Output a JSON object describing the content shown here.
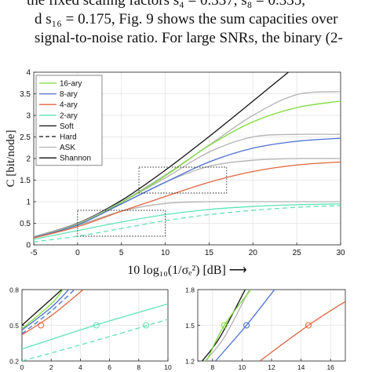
{
  "text_lines": [
    "the fixed scaling factors s₄ = 0.337, s₈ = 0.335,",
    "d s₁₆ = 0.175, Fig. 9 shows the sum capacities over",
    "signal-to-noise ratio. For large SNRs, the binary (2-"
  ],
  "chart_data": [
    {
      "type": "line",
      "title": "",
      "xlabel": "10 log₁₀(1/σₑ²) [dB]  ⟶",
      "ylabel": "C [bit/node]",
      "xlim": [
        -5,
        30
      ],
      "ylim": [
        0,
        4
      ],
      "xticks": [
        -5,
        0,
        5,
        10,
        15,
        20,
        25,
        30
      ],
      "yticks": [
        0,
        0.5,
        1,
        1.5,
        2,
        2.5,
        3,
        3.5,
        4
      ],
      "grid": true,
      "legend_position": "top-left",
      "legend": [
        {
          "label": "16-ary",
          "color": "#7ddc3a",
          "dash": "solid"
        },
        {
          "label": "8-ary",
          "color": "#4b6fd0",
          "dash": "solid"
        },
        {
          "label": "4-ary",
          "color": "#e0653f",
          "dash": "solid"
        },
        {
          "label": "2-ary",
          "color": "#5fe3b4",
          "dash": "solid"
        },
        {
          "label": "Soft",
          "color": "#111111",
          "dash": "solid"
        },
        {
          "label": "Hard",
          "color": "#111111",
          "dash": "dashed"
        },
        {
          "label": "ASK",
          "color": "#b3b3b3",
          "dash": "solid"
        },
        {
          "label": "Shannon",
          "color": "#111111",
          "dash": "solid"
        }
      ],
      "series": [
        {
          "name": "Shannon",
          "color": "#111111",
          "dash": "solid",
          "x": [
            -5,
            0,
            5,
            10,
            15,
            20,
            25,
            28
          ],
          "y": [
            0.19,
            0.5,
            1.03,
            1.73,
            2.51,
            3.33,
            4.16,
            4.66
          ]
        },
        {
          "name": "ASK",
          "color": "#b3b3b3",
          "dash": "solid",
          "x": [
            -5,
            0,
            5,
            10,
            15,
            20,
            25,
            30
          ],
          "y": [
            0.19,
            0.49,
            1.0,
            1.62,
            2.31,
            3.0,
            3.48,
            3.55
          ]
        },
        {
          "color": "#b3b3b3",
          "dash": "solid",
          "x": [
            -5,
            0,
            5,
            10,
            15,
            20,
            25,
            30
          ],
          "y": [
            0.19,
            0.49,
            0.99,
            1.55,
            2.15,
            2.5,
            2.56,
            2.56
          ]
        },
        {
          "color": "#b3b3b3",
          "dash": "solid",
          "x": [
            -5,
            0,
            5,
            10,
            15,
            20,
            25,
            30
          ],
          "y": [
            0.19,
            0.48,
            0.95,
            1.45,
            1.82,
            1.96,
            2.0,
            2.0
          ]
        },
        {
          "color": "#b3b3b3",
          "dash": "solid",
          "x": [
            -5,
            0,
            5,
            10,
            15,
            20,
            25,
            30
          ],
          "y": [
            0.19,
            0.45,
            0.78,
            0.96,
            1.0,
            1.0,
            1.0,
            1.0
          ]
        },
        {
          "name": "16-ary",
          "color": "#7ddc3a",
          "dash": "solid",
          "x": [
            -5,
            0,
            5,
            10,
            15,
            20,
            25,
            30
          ],
          "y": [
            0.17,
            0.47,
            0.98,
            1.6,
            2.3,
            2.85,
            3.18,
            3.33
          ]
        },
        {
          "name": "8-ary",
          "color": "#4b6fd0",
          "dash": "solid",
          "x": [
            -5,
            0,
            5,
            10,
            15,
            20,
            25,
            30
          ],
          "y": [
            0.17,
            0.46,
            0.95,
            1.45,
            1.92,
            2.24,
            2.4,
            2.47
          ]
        },
        {
          "name": "4-ary",
          "color": "#e0653f",
          "dash": "solid",
          "x": [
            -5,
            0,
            5,
            10,
            15,
            20,
            25,
            30
          ],
          "y": [
            0.16,
            0.42,
            0.78,
            1.12,
            1.45,
            1.7,
            1.85,
            1.92
          ]
        },
        {
          "name": "2-ary",
          "color": "#5fe3b4",
          "dash": "solid",
          "x": [
            -5,
            0,
            5,
            10,
            15,
            20,
            25,
            30
          ],
          "y": [
            0.13,
            0.33,
            0.53,
            0.7,
            0.82,
            0.89,
            0.93,
            0.95
          ]
        },
        {
          "name": "Hard",
          "color": "#5fe3b4",
          "dash": "dashed",
          "x": [
            -5,
            0,
            5,
            10,
            15,
            20,
            25,
            30
          ],
          "y": [
            0.07,
            0.2,
            0.38,
            0.56,
            0.7,
            0.8,
            0.87,
            0.91
          ]
        }
      ],
      "zoom_boxes": [
        {
          "x": [
            0,
            10
          ],
          "y": [
            0.2,
            0.8
          ]
        },
        {
          "x": [
            7,
            17
          ],
          "y": [
            1.2,
            1.8
          ]
        }
      ]
    },
    {
      "type": "line",
      "xlim": [
        0,
        10
      ],
      "ylim": [
        0.2,
        0.8
      ],
      "xticks": [
        0,
        2,
        4,
        6,
        8,
        10
      ],
      "yticks": [
        0.2,
        0.5,
        0.8
      ],
      "grid": true,
      "series": [
        {
          "color": "#111111",
          "dash": "solid",
          "x": [
            0,
            2,
            3
          ],
          "y": [
            0.5,
            0.72,
            0.83
          ]
        },
        {
          "color": "#7ddc3a",
          "dash": "solid",
          "x": [
            0,
            2,
            2.8
          ],
          "y": [
            0.47,
            0.68,
            0.8
          ]
        },
        {
          "color": "#4b6fd0",
          "dash": "solid",
          "x": [
            0,
            2,
            3.2
          ],
          "y": [
            0.46,
            0.65,
            0.8
          ]
        },
        {
          "color": "#4b6fd0",
          "dash": "dashed",
          "x": [
            0,
            2,
            3.6
          ],
          "y": [
            0.43,
            0.62,
            0.8
          ]
        },
        {
          "color": "#e0653f",
          "dash": "solid",
          "x": [
            0,
            2,
            4.2
          ],
          "y": [
            0.42,
            0.58,
            0.8
          ]
        },
        {
          "color": "#5fe3b4",
          "dash": "solid",
          "x": [
            0,
            5,
            10
          ],
          "y": [
            0.3,
            0.5,
            0.68
          ]
        },
        {
          "color": "#5fe3b4",
          "dash": "dashed",
          "x": [
            0,
            5,
            10
          ],
          "y": [
            0.2,
            0.37,
            0.55
          ]
        }
      ],
      "markers": [
        {
          "x": 1.3,
          "y": 0.5,
          "color": "#e0653f"
        },
        {
          "x": 5.1,
          "y": 0.5,
          "color": "#5fe3b4"
        },
        {
          "x": 8.5,
          "y": 0.5,
          "color": "#5fe3b4"
        }
      ]
    },
    {
      "type": "line",
      "xlim": [
        7,
        17
      ],
      "ylim": [
        1.2,
        1.8
      ],
      "xticks": [
        8,
        10,
        12,
        14,
        16
      ],
      "yticks": [
        1.2,
        1.5,
        1.8
      ],
      "grid": true,
      "series": [
        {
          "color": "#111111",
          "dash": "solid",
          "x": [
            7.3,
            8.5,
            10.3
          ],
          "y": [
            1.2,
            1.4,
            1.82
          ]
        },
        {
          "color": "#b3b3b3",
          "dash": "solid",
          "x": [
            7.5,
            8.8,
            10.5
          ],
          "y": [
            1.2,
            1.4,
            1.8
          ]
        },
        {
          "color": "#7ddc3a",
          "dash": "solid",
          "x": [
            7.6,
            8.8,
            10.6
          ],
          "y": [
            1.2,
            1.5,
            1.8
          ]
        },
        {
          "color": "#4b6fd0",
          "dash": "solid",
          "x": [
            8.2,
            10.3,
            12.2
          ],
          "y": [
            1.2,
            1.5,
            1.8
          ]
        },
        {
          "color": "#e0653f",
          "dash": "solid",
          "x": [
            11.2,
            14.5,
            17
          ],
          "y": [
            1.2,
            1.5,
            1.7
          ]
        }
      ],
      "markers": [
        {
          "x": 8.8,
          "y": 1.5,
          "color": "#7ddc3a"
        },
        {
          "x": 10.3,
          "y": 1.5,
          "color": "#4b6fd0"
        },
        {
          "x": 14.5,
          "y": 1.5,
          "color": "#e0653f"
        }
      ]
    }
  ]
}
